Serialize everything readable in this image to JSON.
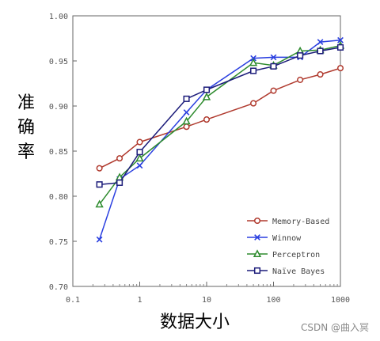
{
  "chart_data": {
    "type": "line",
    "xlabel": "数据大小",
    "ylabel": "准确率",
    "xscale": "log",
    "xlim": [
      0.1,
      1000
    ],
    "ylim": [
      0.7,
      1.0
    ],
    "xticks": [
      "0.1",
      "1",
      "10",
      "100",
      "1000"
    ],
    "yticks": [
      "0.70",
      "0.75",
      "0.80",
      "0.85",
      "0.90",
      "0.95",
      "1.00"
    ],
    "grid": false,
    "legend_position": "bottom-right",
    "series": [
      {
        "name": "Memory-Based",
        "color": "#b03a2e",
        "marker": "circle",
        "x": [
          0.25,
          0.5,
          1,
          5,
          10,
          50,
          100,
          250,
          500,
          1000
        ],
        "y": [
          0.831,
          0.842,
          0.86,
          0.877,
          0.885,
          0.903,
          0.917,
          0.929,
          0.935,
          0.942
        ]
      },
      {
        "name": "Winnow",
        "color": "#2a3fe0",
        "marker": "x",
        "x": [
          0.25,
          0.5,
          1,
          5,
          10,
          50,
          100,
          250,
          500,
          1000
        ],
        "y": [
          0.752,
          0.819,
          0.834,
          0.893,
          0.918,
          0.953,
          0.954,
          0.954,
          0.971,
          0.973
        ]
      },
      {
        "name": "Perceptron",
        "color": "#2e8b2e",
        "marker": "triangle",
        "x": [
          0.25,
          0.5,
          1,
          5,
          10,
          50,
          100,
          250,
          500,
          1000
        ],
        "y": [
          0.791,
          0.821,
          0.842,
          0.883,
          0.91,
          0.948,
          0.945,
          0.961,
          0.962,
          0.967
        ]
      },
      {
        "name": "Naïve Bayes",
        "color": "#1c1c7a",
        "marker": "square",
        "x": [
          0.25,
          0.5,
          1,
          5,
          10,
          50,
          100,
          250,
          500,
          1000
        ],
        "y": [
          0.813,
          0.815,
          0.849,
          0.908,
          0.918,
          0.939,
          0.944,
          0.956,
          0.961,
          0.965
        ]
      }
    ]
  },
  "watermark": "CSDN @曲入冥"
}
